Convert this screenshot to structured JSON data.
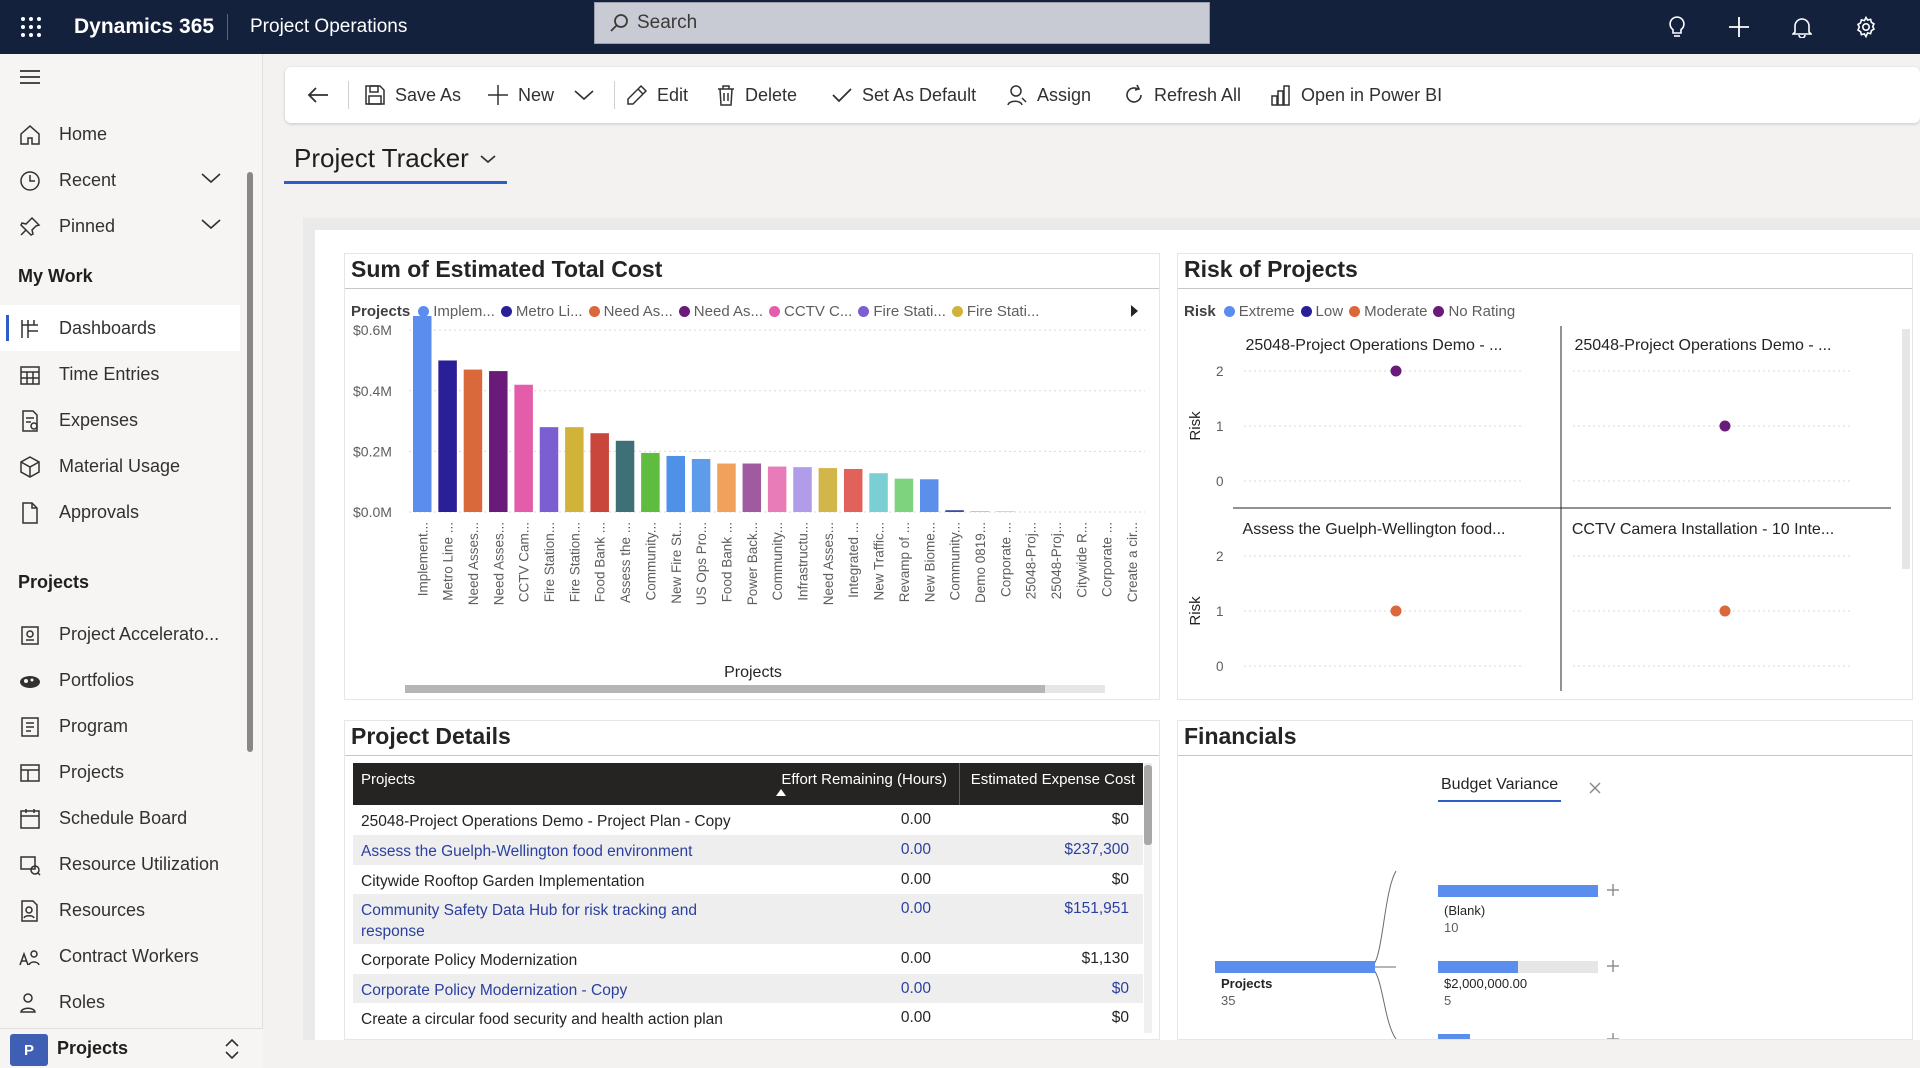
{
  "topbar": {
    "app_title": "Dynamics 365",
    "area_title": "Project Operations",
    "search_placeholder": "Search",
    "colors": {
      "background": "#14213d",
      "accent": "#2f5dc7"
    }
  },
  "sidebar": {
    "top_items": [
      {
        "label": "Home",
        "icon": "home-icon"
      },
      {
        "label": "Recent",
        "icon": "clock-icon"
      },
      {
        "label": "Pinned",
        "icon": "pin-icon"
      }
    ],
    "my_work_heading": "My Work",
    "my_work_items": [
      {
        "label": "Dashboards",
        "icon": "dashboard-icon",
        "selected": true
      },
      {
        "label": "Time Entries",
        "icon": "calendar-icon"
      },
      {
        "label": "Expenses",
        "icon": "receipt-icon"
      },
      {
        "label": "Material Usage",
        "icon": "cube-icon"
      },
      {
        "label": "Approvals",
        "icon": "document-icon"
      }
    ],
    "projects_heading": "Projects",
    "projects_items": [
      {
        "label": "Project Accelerato...",
        "icon": "accelerator-icon"
      },
      {
        "label": "Portfolios",
        "icon": "portfolio-icon"
      },
      {
        "label": "Program",
        "icon": "program-icon"
      },
      {
        "label": "Projects",
        "icon": "projects-icon"
      },
      {
        "label": "Schedule Board",
        "icon": "schedule-icon"
      },
      {
        "label": "Resource Utilization",
        "icon": "utilization-icon"
      },
      {
        "label": "Resources",
        "icon": "resources-icon"
      },
      {
        "label": "Contract Workers",
        "icon": "contract-workers-icon"
      },
      {
        "label": "Roles",
        "icon": "roles-icon"
      }
    ],
    "area_switcher": {
      "badge": "P",
      "label": "Projects"
    }
  },
  "commandbar": {
    "items": [
      "Save As",
      "New",
      "Edit",
      "Delete",
      "Set As Default",
      "Assign",
      "Refresh All",
      "Open in Power BI"
    ]
  },
  "dashboard": {
    "title": "Project Tracker"
  },
  "cost_chart": {
    "title": "Sum of Estimated Total Cost",
    "legend_label": "Projects",
    "legend_items": [
      {
        "label": "Implem...",
        "color": "#5b8def"
      },
      {
        "label": "Metro Li...",
        "color": "#2a1f96"
      },
      {
        "label": "Need As...",
        "color": "#d9683a"
      },
      {
        "label": "Need As...",
        "color": "#6a1b7a"
      },
      {
        "label": "CCTV C...",
        "color": "#e35dab"
      },
      {
        "label": "Fire Stati...",
        "color": "#7b5ed1"
      },
      {
        "label": "Fire Stati...",
        "color": "#d1b33a"
      }
    ],
    "xlabel": "Projects"
  },
  "chart_data": [
    {
      "type": "bar",
      "title": "Sum of Estimated Total Cost",
      "xlabel": "Projects",
      "ylabel": "",
      "y_ticks": [
        "$0.6M",
        "$0.4M",
        "$0.2M",
        "$0.0M"
      ],
      "ylim": [
        0,
        0.66
      ],
      "categories": [
        "Implement...",
        "Metro Line ...",
        "Need Asses...",
        "Need Asses...",
        "CCTV Cam...",
        "Fire Station...",
        "Fire Station...",
        "Food Bank ...",
        "Assess the ...",
        "Community...",
        "New Fire St...",
        "US Ops Pro...",
        "Food Bank ...",
        "Power Back...",
        "Community...",
        "Infrastructu...",
        "Need Asses...",
        "Integrated ...",
        "New Traffic...",
        "Revamp of ...",
        "New Biome...",
        "Community...",
        "Demo 0819...",
        "Corporate ...",
        "25048-Proj...",
        "25048-Proj...",
        "Citywide R...",
        "Corporate ...",
        "Create a cir..."
      ],
      "values": [
        0.65,
        0.5,
        0.47,
        0.465,
        0.42,
        0.28,
        0.28,
        0.26,
        0.235,
        0.195,
        0.185,
        0.175,
        0.16,
        0.16,
        0.15,
        0.148,
        0.145,
        0.142,
        0.128,
        0.11,
        0.108,
        0.006,
        0.002,
        0.001,
        0,
        0,
        0,
        0,
        0
      ],
      "colors": [
        "#5b8def",
        "#2a1f96",
        "#d9683a",
        "#6a1b7a",
        "#e35dab",
        "#7b5ed1",
        "#d1b33a",
        "#c9463d",
        "#3f7077",
        "#5fbc3e",
        "#4f91e8",
        "#5e9be8",
        "#f1a15c",
        "#a05aa0",
        "#e87cb8",
        "#b09ce8",
        "#d3b64a",
        "#e0625b",
        "#79cfd4",
        "#7dd37e",
        "#5b8fe9",
        "#3d4d9e",
        "#f08a4b",
        "#9a5bb1",
        "#e66fb4",
        "#9f86de",
        "#cfae3d",
        "#d85c4f",
        "#5f9aa0"
      ]
    },
    {
      "type": "scatter",
      "title": "Risk of Projects",
      "legend": [
        "Extreme",
        "Low",
        "Moderate",
        "No Rating"
      ],
      "ylabel": "Risk",
      "ylim": [
        0,
        2
      ],
      "y_ticks": [
        "2",
        "1",
        "0"
      ],
      "panels": [
        {
          "title": "25048-Project Operations Demo - ...",
          "points": [
            {
              "y": 2,
              "series": "No Rating"
            }
          ]
        },
        {
          "title": "25048-Project Operations Demo - ...",
          "points": [
            {
              "y": 1,
              "series": "No Rating"
            }
          ]
        },
        {
          "title": "Assess the Guelph-Wellington food...",
          "points": [
            {
              "y": 1,
              "series": "Moderate"
            }
          ]
        },
        {
          "title": "CCTV Camera Installation - 10 Inte...",
          "points": [
            {
              "y": 1,
              "series": "Moderate"
            }
          ]
        }
      ]
    }
  ],
  "risk_chart": {
    "title": "Risk of Projects",
    "legend_label": "Risk",
    "legend_items": [
      {
        "label": "Extreme",
        "color": "#5b8def"
      },
      {
        "label": "Low",
        "color": "#2a1f96"
      },
      {
        "label": "Moderate",
        "color": "#d9683a"
      },
      {
        "label": "No Rating",
        "color": "#6a1b7a"
      }
    ],
    "ylabel": "Risk",
    "panel_titles": [
      "25048-Project Operations Demo - ...",
      "25048-Project Operations Demo - ...",
      "Assess the Guelph-Wellington food...",
      "CCTV Camera Installation - 10 Inte..."
    ]
  },
  "project_details": {
    "title": "Project Details",
    "columns": [
      "Projects",
      "Effort Remaining (Hours)",
      "Estimated Expense Cost"
    ],
    "rows": [
      {
        "name": "25048-Project Operations Demo - Project Plan - Copy",
        "effort": "0.00",
        "cost": "$0"
      },
      {
        "name": "Assess the Guelph-Wellington food environment",
        "effort": "0.00",
        "cost": "$237,300"
      },
      {
        "name": "Citywide Rooftop Garden Implementation",
        "effort": "0.00",
        "cost": "$0"
      },
      {
        "name": "Community Safety Data Hub for risk tracking and response",
        "effort": "0.00",
        "cost": "$151,951"
      },
      {
        "name": "Corporate Policy Modernization",
        "effort": "0.00",
        "cost": "$1,130"
      },
      {
        "name": "Corporate Policy Modernization - Copy",
        "effort": "0.00",
        "cost": "$0"
      },
      {
        "name": "Create a circular food security and health action plan",
        "effort": "0.00",
        "cost": "$0"
      }
    ]
  },
  "financials": {
    "title": "Financials",
    "tab": "Budget Variance",
    "root": {
      "label": "Projects",
      "value": "35"
    },
    "nodes": [
      {
        "label": "(Blank)",
        "value": "10"
      },
      {
        "label": "$2,000,000.00",
        "value": "5"
      }
    ]
  }
}
